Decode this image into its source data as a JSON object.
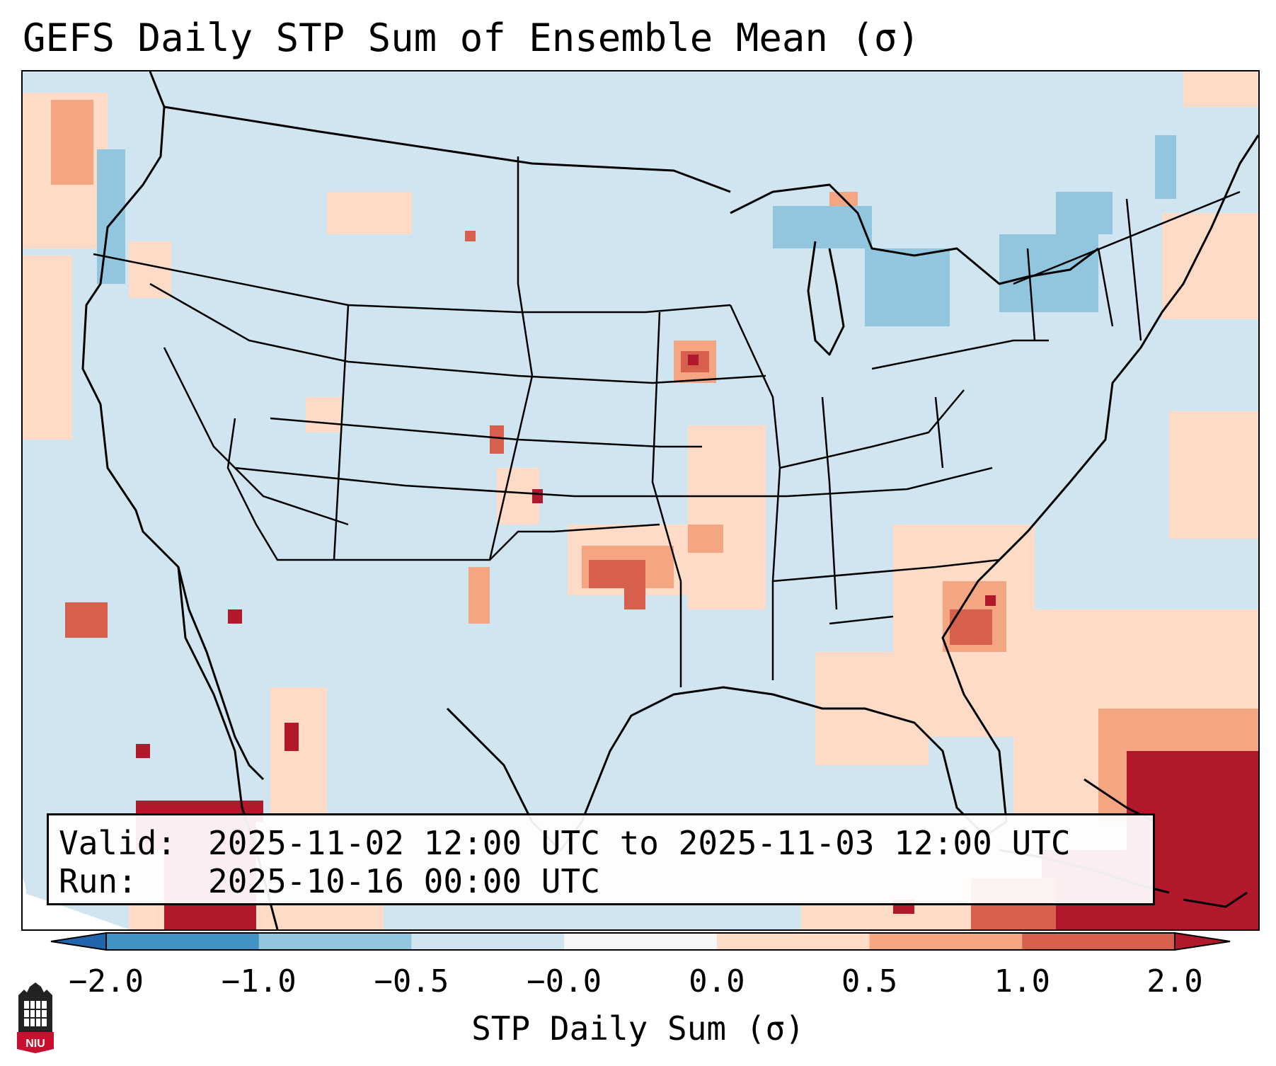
{
  "title": "GEFS Daily STP Sum of Ensemble Mean (σ)",
  "valid_box": {
    "valid_label": "Valid:",
    "valid_value": "2025-11-02 12:00 UTC to 2025-11-03 12:00 UTC",
    "run_label": "Run:",
    "run_value": "2025-10-16 00:00 UTC"
  },
  "colorbar": {
    "label": "STP Daily Sum (σ)",
    "ticks": [
      "−2.0",
      "−1.0",
      "−0.5",
      "−0.0",
      "0.0",
      "0.5",
      "1.0",
      "2.0"
    ],
    "colors": [
      "#4292c6",
      "#92c5de",
      "#d1e5f0",
      "#f7f7f7",
      "#fddbc7",
      "#f4a582",
      "#d6604d",
      "#b2182b"
    ],
    "extend_low_color": "#2166ac",
    "extend_high_color": "#b2182b"
  },
  "field": {
    "background": "#d1e5f0",
    "hotspots": [
      {
        "region": "Iowa",
        "level": "strong"
      },
      {
        "region": "Oklahoma",
        "level": "moderate"
      },
      {
        "region": "Georgia",
        "level": "moderate"
      },
      {
        "region": "Caribbean",
        "level": "strong"
      },
      {
        "region": "Great Lakes",
        "level": "weak-negative"
      }
    ]
  },
  "logo": {
    "text": "NIU",
    "colors": {
      "shield": "#c8102e",
      "tower": "#222222"
    }
  }
}
